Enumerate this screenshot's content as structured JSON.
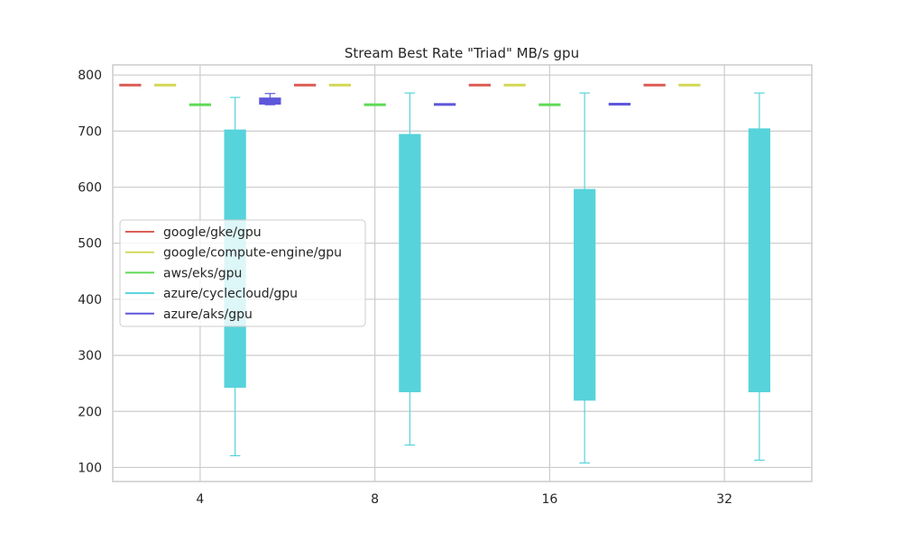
{
  "chart_data": {
    "type": "box",
    "title": "Stream Best Rate \"Triad\" MB/s gpu",
    "xlabel": "",
    "ylabel": "",
    "categories": [
      "4",
      "8",
      "16",
      "32"
    ],
    "ylim": [
      75,
      818
    ],
    "yticks": [
      100,
      200,
      300,
      400,
      500,
      600,
      700,
      800
    ],
    "grid": true,
    "legend_position": "center-left",
    "series": [
      {
        "name": "google/gke/gpu",
        "color": "#db5f57",
        "boxes": [
          {
            "category": "4",
            "whislo": 782,
            "q1": 782,
            "med": 782,
            "q3": 782,
            "whishi": 782
          },
          {
            "category": "8",
            "whislo": 782,
            "q1": 782,
            "med": 782,
            "q3": 782,
            "whishi": 782
          },
          {
            "category": "16",
            "whislo": 782,
            "q1": 782,
            "med": 782,
            "q3": 782,
            "whishi": 782
          },
          {
            "category": "32",
            "whislo": 782,
            "q1": 782,
            "med": 782,
            "q3": 782,
            "whishi": 782
          }
        ]
      },
      {
        "name": "google/compute-engine/gpu",
        "color": "#d3d957",
        "boxes": [
          {
            "category": "4",
            "whislo": 782,
            "q1": 782,
            "med": 782,
            "q3": 782,
            "whishi": 782
          },
          {
            "category": "8",
            "whislo": 782,
            "q1": 782,
            "med": 782,
            "q3": 782,
            "whishi": 782
          },
          {
            "category": "16",
            "whislo": 782,
            "q1": 782,
            "med": 782,
            "q3": 782,
            "whishi": 782
          },
          {
            "category": "32",
            "whislo": 782,
            "q1": 782,
            "med": 782,
            "q3": 782,
            "whishi": 782
          }
        ]
      },
      {
        "name": "aws/eks/gpu",
        "color": "#5fd957",
        "boxes": [
          {
            "category": "4",
            "whislo": 747,
            "q1": 747,
            "med": 747,
            "q3": 747,
            "whishi": 747
          },
          {
            "category": "8",
            "whislo": 747,
            "q1": 747,
            "med": 747,
            "q3": 747,
            "whishi": 747
          },
          {
            "category": "16",
            "whislo": 747,
            "q1": 747,
            "med": 747,
            "q3": 747,
            "whishi": 747
          }
        ]
      },
      {
        "name": "azure/cyclecloud/gpu",
        "color": "#57d3db",
        "boxes": [
          {
            "category": "4",
            "whislo": 121,
            "q1": 243,
            "med": 700,
            "q3": 702,
            "whishi": 760
          },
          {
            "category": "8",
            "whislo": 140,
            "q1": 235,
            "med": 692,
            "q3": 694,
            "whishi": 768
          },
          {
            "category": "16",
            "whislo": 108,
            "q1": 220,
            "med": 594,
            "q3": 596,
            "whishi": 768
          },
          {
            "category": "32",
            "whislo": 113,
            "q1": 235,
            "med": 702,
            "q3": 704,
            "whishi": 768
          }
        ]
      },
      {
        "name": "azure/aks/gpu",
        "color": "#5f57db",
        "boxes": [
          {
            "category": "4",
            "whislo": 747,
            "q1": 748,
            "med": 752,
            "q3": 759,
            "whishi": 767
          },
          {
            "category": "8",
            "whislo": 747,
            "q1": 747,
            "med": 747,
            "q3": 748,
            "whishi": 748
          },
          {
            "category": "16",
            "whislo": 747,
            "q1": 747,
            "med": 748,
            "q3": 749,
            "whishi": 749
          }
        ]
      }
    ]
  }
}
